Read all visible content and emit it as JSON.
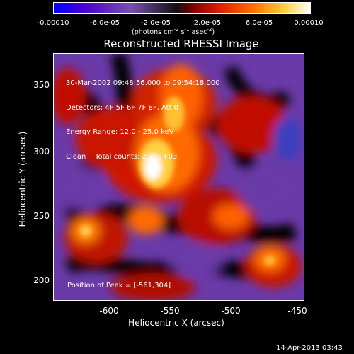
{
  "colorbar": {
    "ticks": [
      "-0.00010",
      "-6.0e-05",
      "-2.0e-05",
      "2.0e-05",
      "6.0e-05",
      "0.00010"
    ],
    "units_prefix": "(photons cm",
    "units_exp1": "-2",
    "units_mid": " s",
    "units_exp2": "-1",
    "units_mid2": " asec",
    "units_exp3": "-2",
    "units_suffix": ")",
    "gradient": [
      "#0000ff",
      "#5a00c8",
      "#7a4fb0",
      "#000000",
      "#d01000",
      "#ff6000",
      "#ffd040",
      "#ffffff"
    ]
  },
  "title": "Reconstructed RHESSI Image",
  "info": {
    "time": "30-Mar-2002 09:48:56.000 to 09:54:18.000",
    "detectors": "Detectors: 4F 5F 6F 7F 8F, Att 0",
    "energy": "Energy Range: 12.0 - 25.0 keV",
    "clean": "Clean    Total counts: 2.77E+03"
  },
  "peak": "Position of Peak = [-561,304]",
  "x_axis": {
    "label": "Heliocentric X (arcsec)",
    "ticks": [
      "-600",
      "-550",
      "-500",
      "-450"
    ]
  },
  "y_axis": {
    "label": "Heliocentric Y (arcsec)",
    "ticks": [
      "350",
      "300",
      "250",
      "200"
    ]
  },
  "footer": "14-Apr-2013 03:43"
}
